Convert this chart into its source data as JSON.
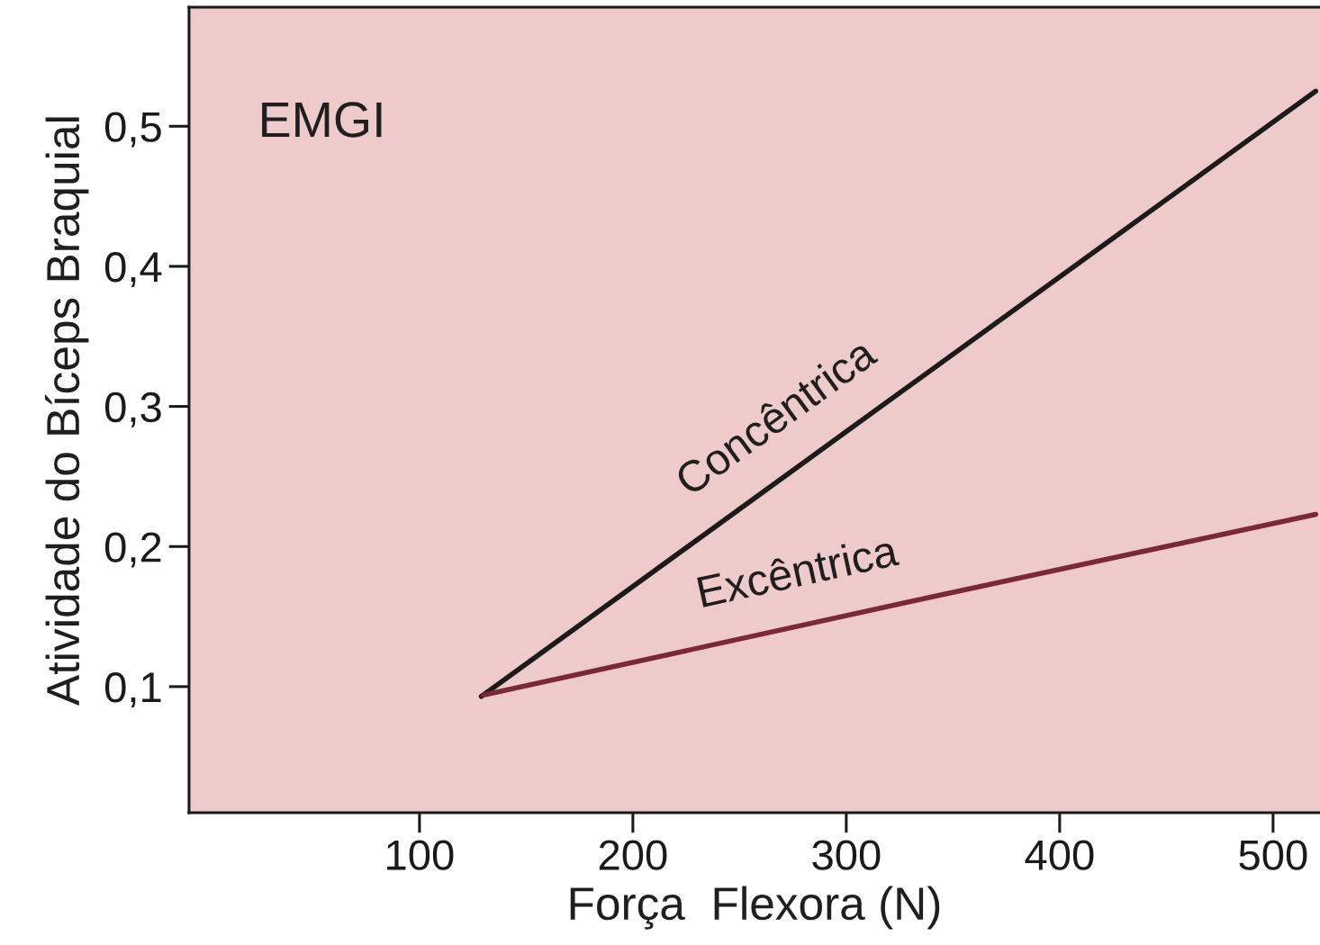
{
  "chart_data": {
    "type": "line",
    "xlabel": "Força  Flexora (N)",
    "ylabel": "Atividade do Bíceps Braquial",
    "annotations": [
      "EMGI"
    ],
    "xlim": [
      -8,
      522
    ],
    "xticks": [
      100,
      200,
      300,
      400,
      500
    ],
    "ylim": [
      0.01,
      0.585
    ],
    "yticks": [
      {
        "value": 0.1,
        "label": "0,1"
      },
      {
        "value": 0.2,
        "label": "0,2"
      },
      {
        "value": 0.3,
        "label": "0,3"
      },
      {
        "value": 0.4,
        "label": "0,4"
      },
      {
        "value": 0.5,
        "label": "0,5"
      }
    ],
    "line_style": "solid",
    "series": [
      {
        "name": "Concêntrica",
        "color": "#1c1a1a",
        "x": [
          129,
          300,
          520
        ],
        "values": [
          0.093,
          0.282,
          0.525
        ]
      },
      {
        "name": "Excêntrica",
        "color": "#7a2a35",
        "x": [
          130,
          340,
          520
        ],
        "values": [
          0.094,
          0.164,
          0.223
        ]
      }
    ]
  }
}
